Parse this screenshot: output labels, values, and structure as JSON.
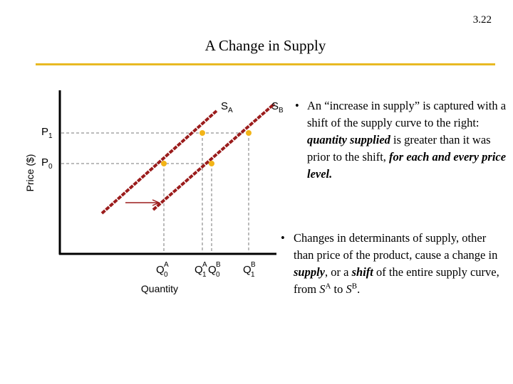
{
  "slide": {
    "number": "3.22",
    "title": "A Change in Supply"
  },
  "chart": {
    "ylabel": "Price ($)",
    "xlabel": "Quantity",
    "y_ticks": [
      {
        "main": "P",
        "sub": "1"
      },
      {
        "main": "P",
        "sub": "0"
      }
    ],
    "curves": [
      {
        "main": "S",
        "sub": "A"
      },
      {
        "main": "S",
        "sub": "B"
      }
    ],
    "x_ticks": [
      {
        "main": "Q",
        "sub": "0",
        "sup": "A"
      },
      {
        "main": "Q",
        "sub": "1",
        "sup": "A"
      },
      {
        "main": "Q",
        "sub": "0",
        "sup": "B"
      },
      {
        "main": "Q",
        "sub": "1",
        "sup": "B"
      }
    ],
    "colors": {
      "curve": "#9b1c1c",
      "point": "#f2b418",
      "guide": "#777777",
      "title_rule": "#e8b923",
      "arrow": "#9b1c1c"
    }
  },
  "bullet1": {
    "t1": "An “increase in supply” is captured with a shift of the supply curve to the right: ",
    "t2": "quantity supplied",
    "t3": " is greater than it was prior to the shift, ",
    "t4": "for each and every price level."
  },
  "bullet2": {
    "t1": "Changes in determinants of supply, other than price of the product, cause a change in ",
    "t2": "supply",
    "t3": ", or a ",
    "t4": "shift",
    "t5": " of the entire supply curve, from ",
    "t6": "S",
    "t7": "A",
    "t8": " to ",
    "t9": "S",
    "t10": "B",
    "t11": "."
  },
  "bullet_char": "•"
}
